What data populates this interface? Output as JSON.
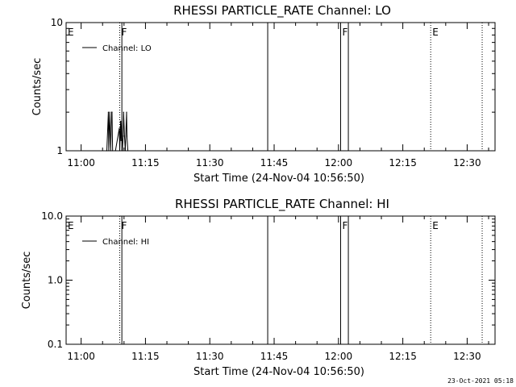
{
  "chart_data": [
    {
      "type": "line",
      "title": "RHESSI PARTICLE_RATE Channel: LO",
      "xlabel": "Start Time (24-Nov-04 10:56:50)",
      "ylabel": "Counts/sec",
      "x_tick_labels": [
        "11:00",
        "11:15",
        "11:30",
        "11:45",
        "12:00",
        "12:15",
        "12:30"
      ],
      "x_tick_minutes": [
        0,
        15,
        30,
        45,
        60,
        75,
        90
      ],
      "xlim_minutes": [
        -3.5,
        96.5
      ],
      "y_scale": "log",
      "ylim": [
        1,
        10
      ],
      "y_tick_labels": [
        {
          "value": 1,
          "label": "1"
        },
        {
          "value": 10,
          "label": "10"
        }
      ],
      "legend": {
        "position": "top-left",
        "entries": [
          "Channel: LO"
        ]
      },
      "series": [
        {
          "name": "Channel: LO",
          "color": "#000000",
          "x_minutes": [
            5.9,
            6.0,
            6.35,
            6.45,
            6.65,
            6.9,
            7.1,
            7.2,
            7.35,
            8.0,
            8.9,
            9.0,
            9.2,
            9.3,
            9.45,
            9.6,
            9.8,
            9.9,
            10.1,
            10.3,
            10.6,
            10.7,
            10.9
          ],
          "values": [
            1,
            1,
            2,
            1,
            2,
            1,
            2,
            2,
            1,
            1,
            1.5,
            1,
            1.7,
            1.2,
            1.7,
            1,
            1.3,
            2,
            1.3,
            1,
            2,
            1.3,
            1
          ]
        }
      ],
      "markers": [
        {
          "label": "E",
          "minute": -3.5,
          "style": "none"
        },
        {
          "label": "F",
          "minute": 9.0,
          "style": "dotted"
        },
        {
          "label": "",
          "minute": 9.5,
          "style": "solid"
        },
        {
          "label": "",
          "minute": 43.5,
          "style": "solid"
        },
        {
          "label": "F",
          "minute": 60.5,
          "style": "solid"
        },
        {
          "label": "",
          "minute": 62.3,
          "style": "solid"
        },
        {
          "label": "E",
          "minute": 81.5,
          "style": "dotted"
        },
        {
          "label": "",
          "minute": 93.5,
          "style": "dotted"
        }
      ]
    },
    {
      "type": "line",
      "title": "RHESSI PARTICLE_RATE Channel: HI",
      "xlabel": "Start Time (24-Nov-04 10:56:50)",
      "ylabel": "Counts/sec",
      "x_tick_labels": [
        "11:00",
        "11:15",
        "11:30",
        "11:45",
        "12:00",
        "12:15",
        "12:30"
      ],
      "x_tick_minutes": [
        0,
        15,
        30,
        45,
        60,
        75,
        90
      ],
      "xlim_minutes": [
        -3.5,
        96.5
      ],
      "y_scale": "log",
      "ylim": [
        0.1,
        10
      ],
      "y_tick_labels": [
        {
          "value": 0.1,
          "label": "0.1"
        },
        {
          "value": 1,
          "label": "1.0"
        },
        {
          "value": 10,
          "label": "10.0"
        }
      ],
      "legend": {
        "position": "top-left",
        "entries": [
          "Channel: HI"
        ]
      },
      "series": [
        {
          "name": "Channel: HI",
          "color": "#000000",
          "x_minutes": [],
          "values": []
        }
      ],
      "markers": [
        {
          "label": "E",
          "minute": -3.5,
          "style": "none"
        },
        {
          "label": "F",
          "minute": 9.0,
          "style": "dotted"
        },
        {
          "label": "",
          "minute": 9.5,
          "style": "solid"
        },
        {
          "label": "",
          "minute": 43.5,
          "style": "solid"
        },
        {
          "label": "F",
          "minute": 60.5,
          "style": "solid"
        },
        {
          "label": "",
          "minute": 62.3,
          "style": "solid"
        },
        {
          "label": "E",
          "minute": 81.5,
          "style": "dotted"
        },
        {
          "label": "",
          "minute": 93.5,
          "style": "dotted"
        }
      ]
    }
  ],
  "footer": {
    "timestamp": "23-Oct-2021 05:18"
  }
}
